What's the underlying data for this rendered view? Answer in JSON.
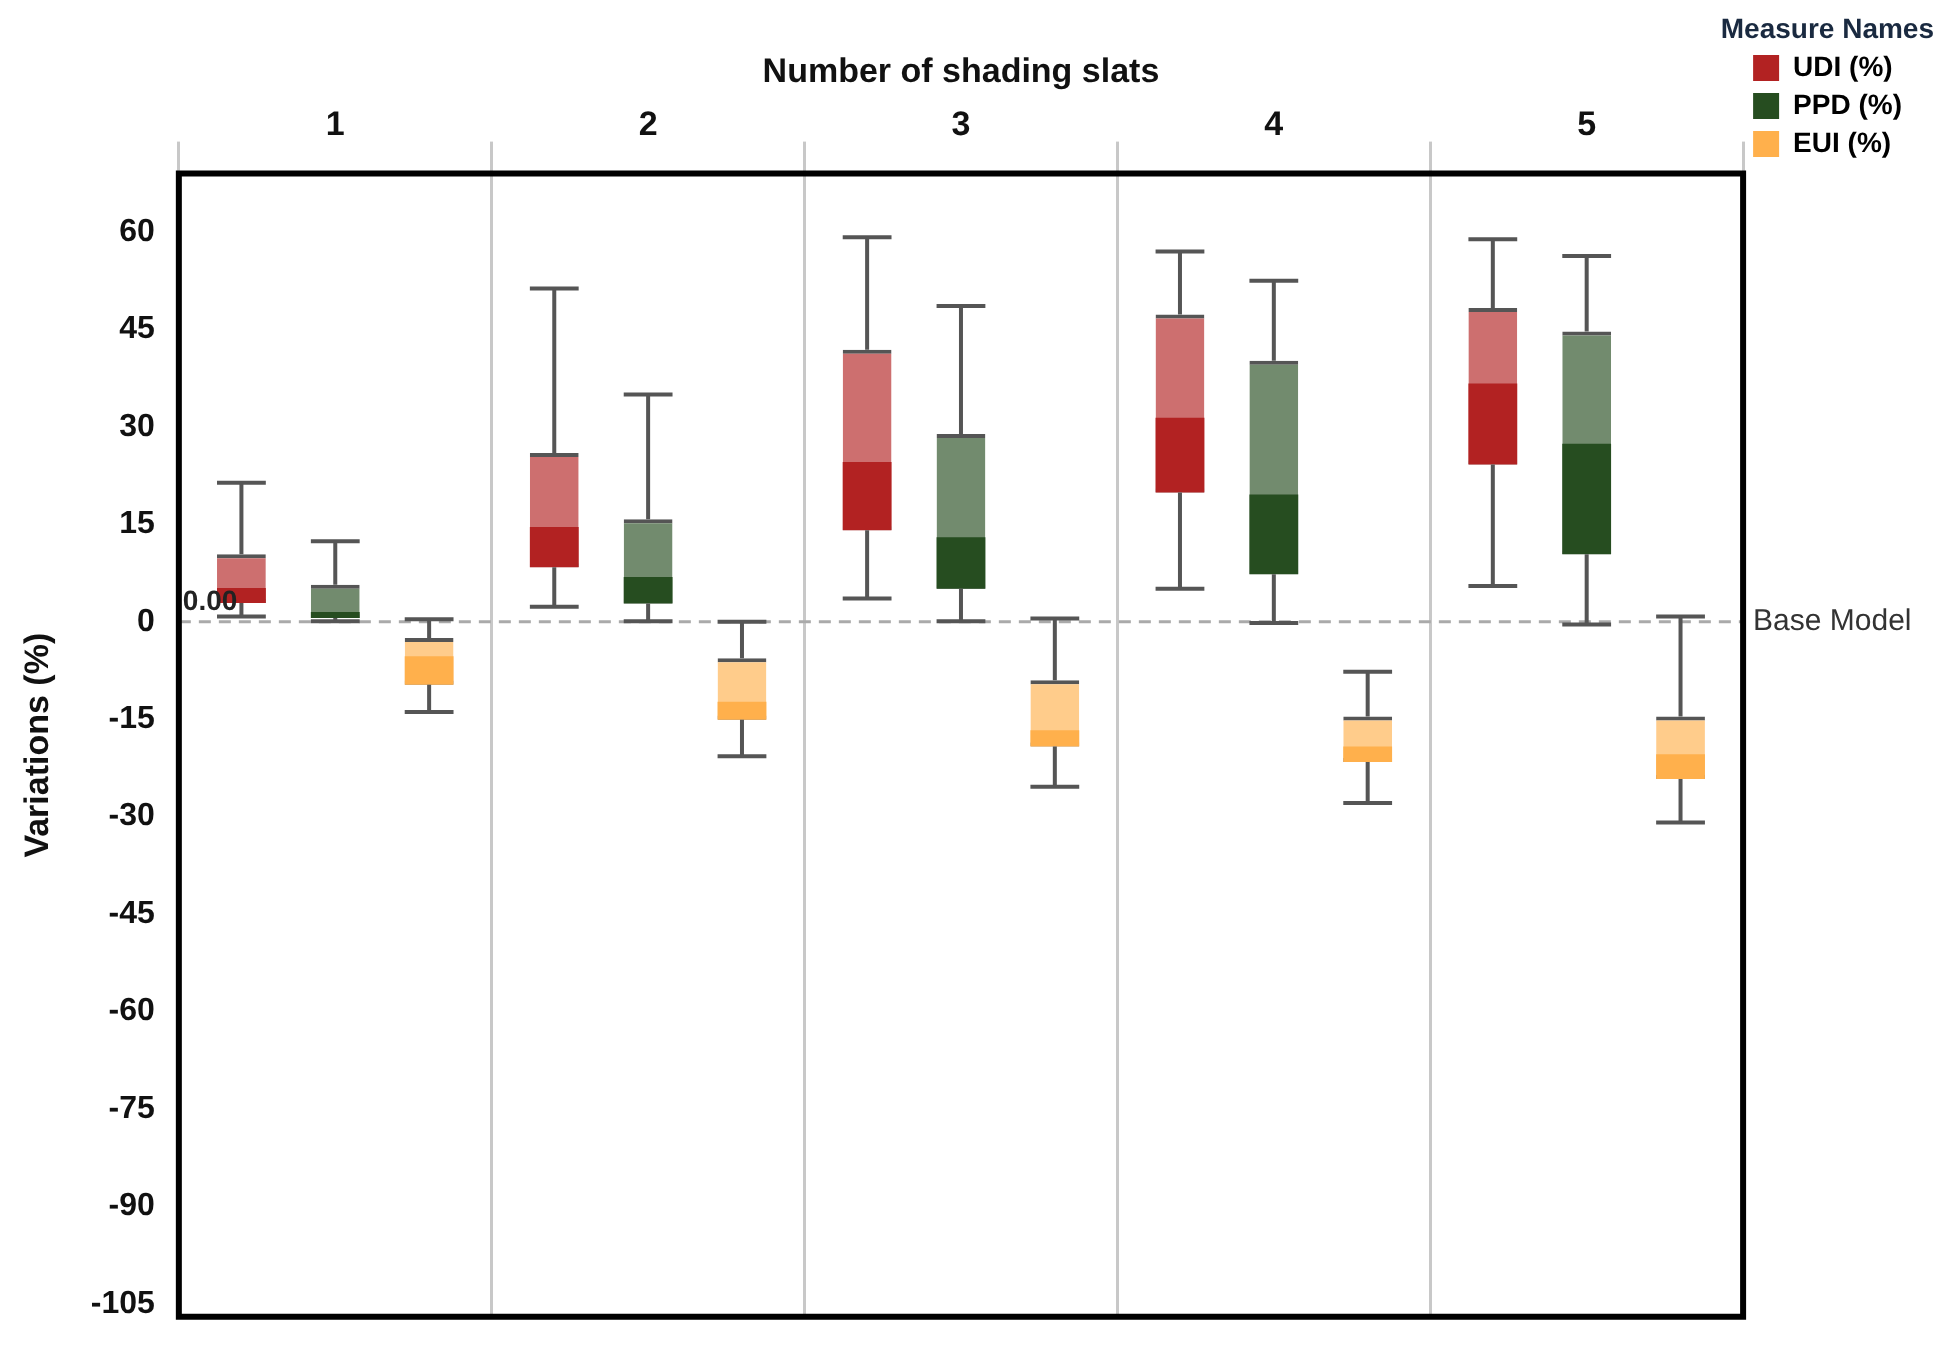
{
  "chart_data": {
    "type": "box",
    "xlabel": "Number of shading slats",
    "ylabel": "Variations (%)",
    "legend_title": "Measure Names",
    "categories": [
      "1",
      "2",
      "3",
      "4",
      "5"
    ],
    "series": [
      {
        "name": "UDI (%)",
        "color": "#b22222",
        "boxes": [
          {
            "low": 0.8,
            "q1": 2.9,
            "median": 5.2,
            "q3": 10.4,
            "high": 21.4
          },
          {
            "low": 2.3,
            "q1": 8.4,
            "median": 14.6,
            "q3": 26,
            "high": 51.3
          },
          {
            "low": 3.6,
            "q1": 14.1,
            "median": 24.6,
            "q3": 41.9,
            "high": 59.2
          },
          {
            "low": 5.1,
            "q1": 19.9,
            "median": 31.4,
            "q3": 47.3,
            "high": 57
          },
          {
            "low": 5.5,
            "q1": 24.2,
            "median": 36.7,
            "q3": 48.3,
            "high": 58.9
          }
        ]
      },
      {
        "name": "PPD (%)",
        "color": "#264d20",
        "boxes": [
          {
            "low": 0.1,
            "q1": 0.6,
            "median": 1.5,
            "q3": 5.7,
            "high": 12.4
          },
          {
            "low": 0.1,
            "q1": 2.8,
            "median": 6.9,
            "q3": 15.8,
            "high": 35
          },
          {
            "low": 0.1,
            "q1": 5.1,
            "median": 13,
            "q3": 28.9,
            "high": 48.6
          },
          {
            "low": -0.2,
            "q1": 7.3,
            "median": 19.6,
            "q3": 40.2,
            "high": 52.5
          },
          {
            "low": -0.4,
            "q1": 10.4,
            "median": 27.4,
            "q3": 44.7,
            "high": 56.3
          }
        ]
      },
      {
        "name": "EUI (%)",
        "color": "#ffb04c",
        "boxes": [
          {
            "low": -13.9,
            "q1": -9.7,
            "median": -5.3,
            "q3": -2.5,
            "high": 0.4
          },
          {
            "low": -20.7,
            "q1": -15.1,
            "median": -12.3,
            "q3": -5.6,
            "high": 0
          },
          {
            "low": -25.4,
            "q1": -19.2,
            "median": -16.7,
            "q3": -9,
            "high": 0.5
          },
          {
            "low": -27.9,
            "q1": -21.6,
            "median": -19.2,
            "q3": -14.6,
            "high": -7.7
          },
          {
            "low": -30.9,
            "q1": -24.2,
            "median": -20.4,
            "q3": -14.6,
            "high": 0.8
          }
        ]
      }
    ],
    "ylim": [
      -107,
      69
    ],
    "yticks": [
      -105,
      -90,
      -75,
      -60,
      -45,
      -30,
      -15,
      0,
      15,
      30,
      45,
      60
    ],
    "ref_lines": [
      {
        "axis": "y",
        "value": 0,
        "label": "Base Model",
        "color": "#aaaaaa",
        "line_style": "dashed"
      }
    ],
    "annotations": [
      "0.00"
    ],
    "grid": "x",
    "legend": "top right"
  }
}
